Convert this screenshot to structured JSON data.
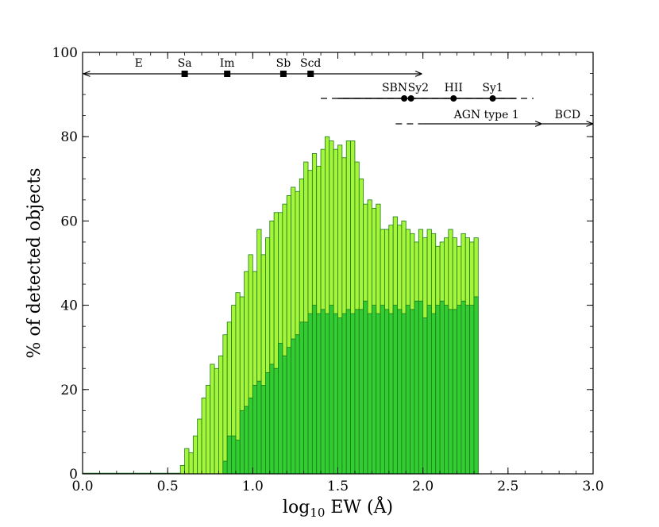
{
  "chart_data": {
    "type": "bar",
    "xlabel_main": "log",
    "xlabel_sub": "10",
    "xlabel_rest": " EW (Å)",
    "ylabel": "% of detected objects",
    "xlim": [
      0.0,
      3.0
    ],
    "ylim": [
      0,
      100
    ],
    "xticks": [
      0.0,
      0.5,
      1.0,
      1.5,
      2.0,
      2.5,
      3.0
    ],
    "xtick_labels": [
      "0.0",
      "0.5",
      "1.0",
      "1.5",
      "2.0",
      "2.5",
      "3.0"
    ],
    "yticks": [
      0,
      20,
      40,
      60,
      80,
      100
    ],
    "ytick_labels": [
      "0",
      "20",
      "40",
      "60",
      "80",
      "100"
    ],
    "bin_width": 0.025,
    "bin_start": 0.575,
    "series": [
      {
        "color": "#a6f53a",
        "edge": "#1a7a1a",
        "values": [
          2,
          6,
          5,
          9,
          13,
          18,
          21,
          26,
          25,
          28,
          33,
          36,
          40,
          43,
          42,
          48,
          52,
          48,
          58,
          52,
          56,
          60,
          62,
          62,
          64,
          66,
          68,
          67,
          70,
          74,
          72,
          76,
          73,
          77,
          80,
          79,
          77,
          78,
          75,
          79,
          79,
          74,
          70,
          64,
          65,
          63,
          64,
          58,
          58,
          59,
          61,
          59,
          60,
          58,
          57,
          55,
          58,
          56,
          58,
          57,
          54,
          55,
          56,
          58,
          56,
          54,
          57,
          56,
          55,
          56
        ]
      },
      {
        "color": "#33cc33",
        "edge": "#1a7a1a",
        "values": [
          0,
          0,
          0,
          0,
          0,
          0,
          0,
          0,
          0,
          0,
          3,
          9,
          9,
          8,
          15,
          16,
          18,
          21,
          22,
          21,
          24,
          26,
          25,
          31,
          28,
          30,
          32,
          33,
          36,
          36,
          38,
          40,
          38,
          39,
          38,
          40,
          38,
          37,
          38,
          39,
          38,
          39,
          39,
          41,
          38,
          40,
          38,
          40,
          39,
          38,
          40,
          39,
          38,
          40,
          39,
          41,
          41,
          37,
          40,
          38,
          40,
          41,
          40,
          39,
          39,
          40,
          41,
          40,
          40,
          42
        ]
      }
    ],
    "annotations": {
      "row1": {
        "range": [
          0.0,
          2.0
        ],
        "markers": [
          {
            "label": "E",
            "x": 0.33,
            "shape": "none"
          },
          {
            "label": "Sa",
            "x": 0.6,
            "shape": "square"
          },
          {
            "label": "Im",
            "x": 0.85,
            "shape": "square"
          },
          {
            "label": "Sb",
            "x": 1.18,
            "shape": "square"
          },
          {
            "label": "Scd",
            "x": 1.34,
            "shape": "square"
          }
        ]
      },
      "row2": {
        "dash_range": [
          1.4,
          2.65
        ],
        "solid_range": [
          1.5,
          2.55
        ],
        "markers": [
          {
            "label": "SBN",
            "x": 1.89
          },
          {
            "label": "Sy2",
            "x": 1.93
          },
          {
            "label": "HII",
            "x": 2.18
          },
          {
            "label": "Sy1",
            "x": 2.41
          }
        ]
      },
      "row3": {
        "dash_start": 1.84,
        "solid_start": 2.0,
        "agn_label": "AGN type 1",
        "agn_end": 2.7,
        "bcd_label": "BCD",
        "bcd_end": 3.0
      }
    }
  }
}
